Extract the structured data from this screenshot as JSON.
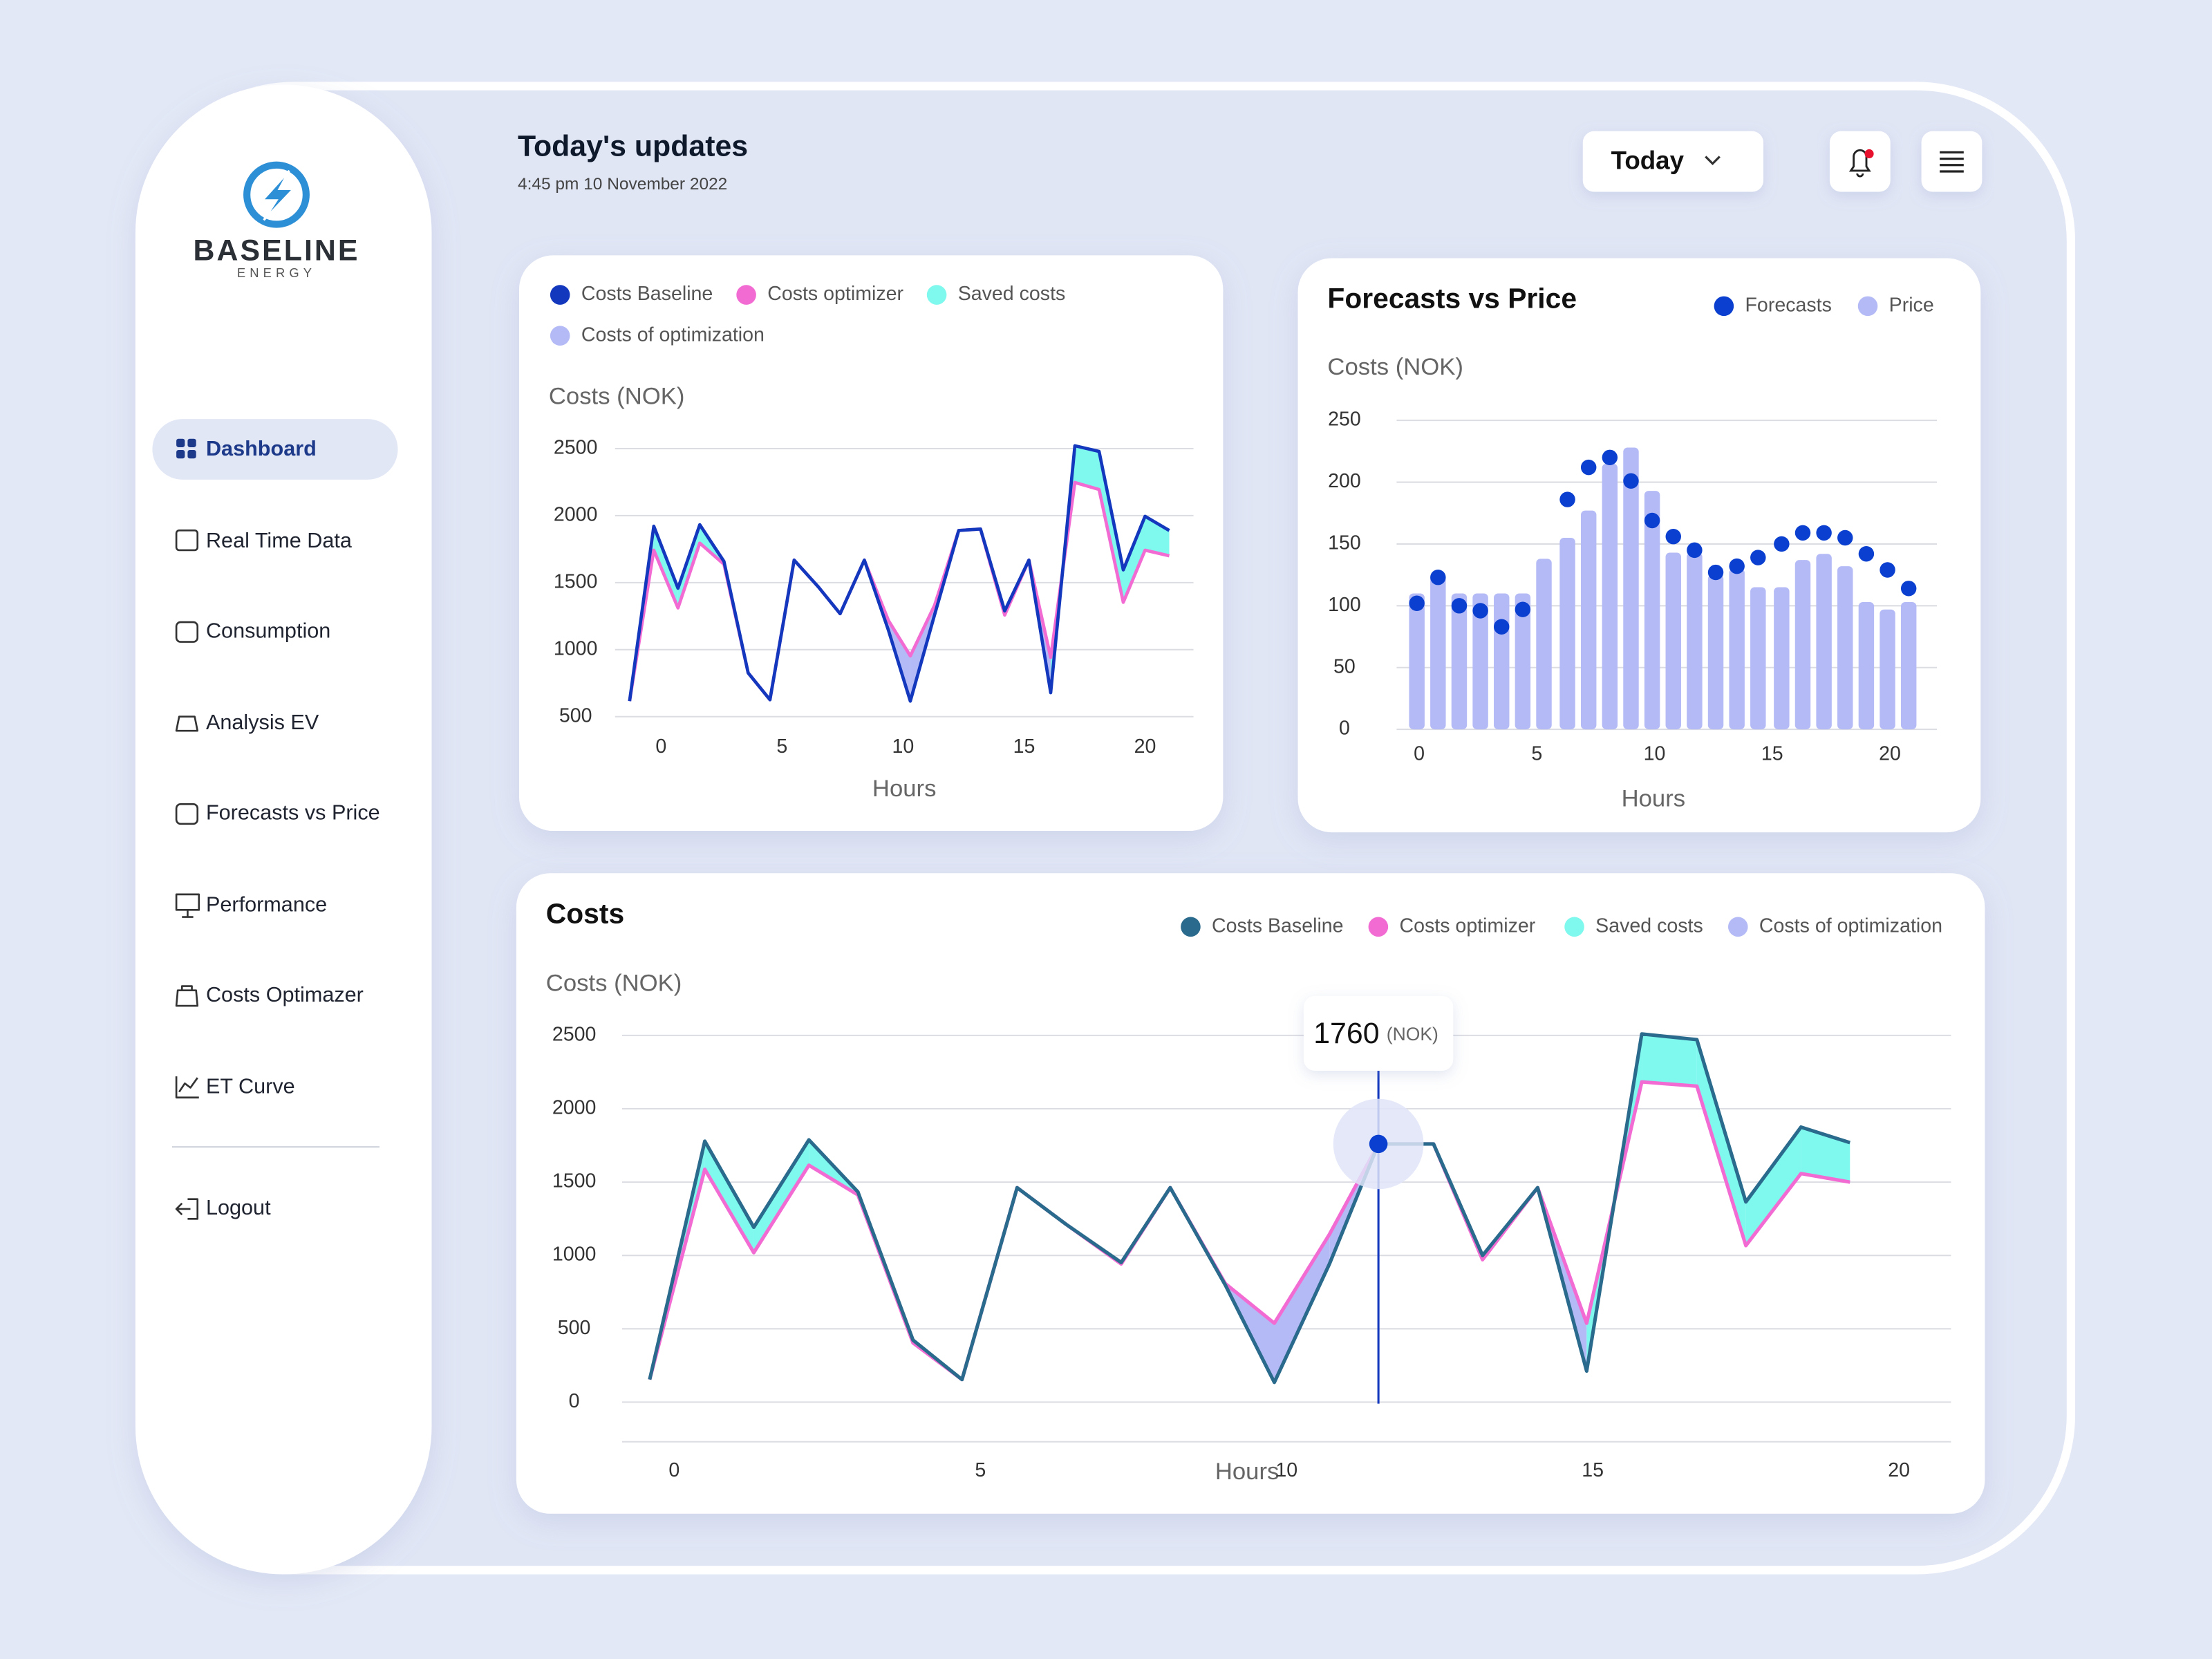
{
  "brand": {
    "name": "BASELINE",
    "tagline": "ENERGY"
  },
  "nav": [
    "Dashboard",
    "Real Time Data",
    "Consumption",
    "Analysis EV",
    "Forecasts vs Price",
    "Performance",
    "Costs Optimazer",
    "ET Curve"
  ],
  "logout": "Logout",
  "header": {
    "title": "Today's updates",
    "date": "4:45 pm 10 November 2022",
    "period": "Today"
  },
  "chart_data": [
    {
      "type": "line",
      "ylabel": "Costs (NOK)",
      "xlabel": "Hours",
      "x": [
        -1.3,
        -0.3,
        0.7,
        1.6,
        2.6,
        3.6,
        4.5,
        5.5,
        6.5,
        7.4,
        8.4,
        9.4,
        10.3,
        11.3,
        12.3,
        13.2,
        14.2,
        15.2,
        16.1,
        17.1,
        18.1,
        19.1,
        20,
        21
      ],
      "series": [
        {
          "name": "Costs Baseline",
          "color": "#1338be",
          "values": [
            616,
            1921,
            1458,
            1932,
            1658,
            826,
            626,
            1668,
            1468,
            1268,
            1668,
            1142,
            616,
            1258,
            1889,
            1900,
            1289,
            1668,
            679,
            2521,
            2479,
            1595,
            1995,
            1889
          ]
        },
        {
          "name": "Costs optimizer",
          "color": "#f26bd3",
          "values": [
            616,
            1742,
            1311,
            1795,
            1637,
            826,
            626,
            1668,
            1468,
            1268,
            1668,
            1216,
            953,
            1330,
            1889,
            1900,
            1258,
            1668,
            942,
            2247,
            2195,
            1353,
            1742,
            1700
          ]
        }
      ],
      "areas": [
        {
          "name": "Saved costs",
          "color": "#7ff8ee"
        },
        {
          "name": "Costs of optimization",
          "color": "#b4baf6"
        }
      ],
      "xlim": [
        -1.9,
        22
      ],
      "xticks": [
        0,
        5,
        10,
        15,
        20
      ],
      "ylim": [
        400,
        2600
      ],
      "yticks": [
        500,
        1000,
        1500,
        2000,
        2500
      ],
      "grid": true
    },
    {
      "type": "bar",
      "title": "Forecasts vs Price",
      "ylabel": "Costs (NOK)",
      "xlabel": "Hours",
      "x": [
        -0.1,
        0.8,
        1.7,
        2.6,
        3.5,
        4.4,
        5.3,
        6.3,
        7.2,
        8.1,
        9.0,
        9.9,
        10.8,
        11.7,
        12.6,
        13.5,
        14.4,
        15.4,
        16.3,
        17.2,
        18.1,
        19.0,
        19.9,
        20.8
      ],
      "series": [
        {
          "name": "Forecasts",
          "type": "scatter",
          "color": "#0a3fcf",
          "values": [
            102,
            123,
            100,
            96,
            83,
            97,
            null,
            186,
            212,
            220,
            201,
            169,
            156,
            145,
            127,
            132,
            139,
            150,
            159,
            159,
            155,
            142,
            129,
            114
          ]
        },
        {
          "name": "Price",
          "type": "bar",
          "color": "#b4baf6",
          "values": [
            110,
            125,
            110,
            110,
            110,
            110,
            138,
            155,
            177,
            215,
            228,
            193,
            143,
            143,
            125,
            130,
            115,
            115,
            137,
            142,
            132,
            103,
            97,
            103
          ]
        }
      ],
      "xlim": [
        -0.96,
        22
      ],
      "xticks": [
        0,
        5,
        10,
        15,
        20
      ],
      "ylim": [
        0,
        250
      ],
      "yticks": [
        0,
        50,
        100,
        150,
        200,
        250
      ],
      "grid": true
    },
    {
      "type": "line",
      "title": "Costs",
      "ylabel": "Costs (NOK)",
      "xlabel": "Hours",
      "x": [
        -0.4,
        0.5,
        1.3,
        2.2,
        3.0,
        3.9,
        4.7,
        5.6,
        6.4,
        7.3,
        8.1,
        9.0,
        9.8,
        10.7,
        11.5,
        12.4,
        13.2,
        14.1,
        14.9,
        15.8,
        16.7,
        17.5,
        18.4,
        19.2
      ],
      "series": [
        {
          "name": "Costs Baseline",
          "color": "#2a6a8c",
          "values": [
            154,
            1779,
            1192,
            1788,
            1433,
            423,
            154,
            1462,
            1212,
            952,
            1462,
            798,
            135,
            942,
            1760,
            1760,
            1000,
            1462,
            212,
            2510,
            2471,
            1365,
            1875,
            1769
          ]
        },
        {
          "name": "Costs optimizer",
          "color": "#f26bd3",
          "values": [
            154,
            1587,
            1019,
            1615,
            1413,
            404,
            154,
            1462,
            1212,
            942,
            1462,
            808,
            538,
            1144,
            1760,
            1760,
            971,
            1462,
            538,
            2183,
            2154,
            1067,
            1558,
            1500
          ]
        }
      ],
      "areas": [
        {
          "name": "Saved costs",
          "color": "#7ff8ee"
        },
        {
          "name": "Costs of optimization",
          "color": "#b4baf6"
        }
      ],
      "tooltip_unit": "(NOK)",
      "xlim": [
        -0.85,
        20.85
      ],
      "xticks": [
        0,
        5,
        10,
        15,
        20
      ],
      "ylim": [
        -270,
        2640
      ],
      "yticks": [
        0,
        500,
        1000,
        1500,
        2000,
        2500
      ],
      "grid": true
    }
  ]
}
